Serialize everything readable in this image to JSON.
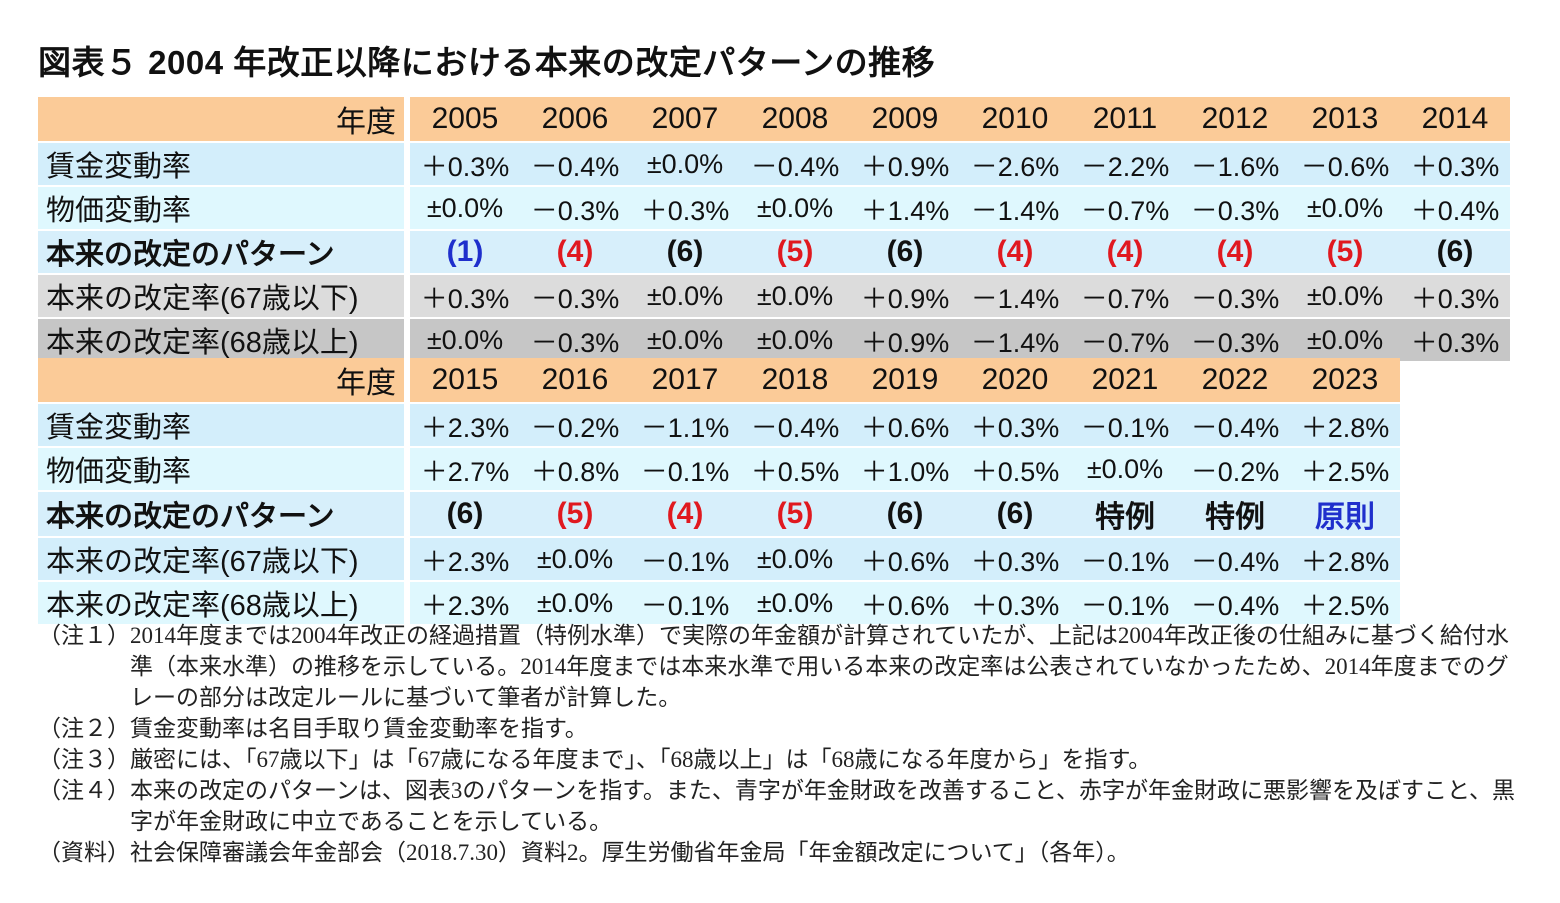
{
  "title": "図表５  2004 年改正以降における本来の改定パターンの推移",
  "colors": {
    "header": "#fbcb98",
    "red": "#e0191f",
    "blue": "#1f2fcc",
    "gray1": "#dcdcdc",
    "gray2": "#c6c6c6",
    "lightblue": "#d3eefb"
  },
  "row_labels": {
    "year": "年度",
    "wage": "賃金変動率",
    "price": "物価変動率",
    "pattern": "本来の改定のパターン",
    "rate67": "本来の改定率(67歳以下)",
    "rate68": "本来の改定率(68歳以上)"
  },
  "table1": {
    "years": [
      "2005",
      "2006",
      "2007",
      "2008",
      "2009",
      "2010",
      "2011",
      "2012",
      "2013",
      "2014"
    ],
    "wage": [
      "＋0.3%",
      "－0.4%",
      "±0.0%",
      "－0.4%",
      "＋0.9%",
      "－2.6%",
      "－2.2%",
      "－1.6%",
      "－0.6%",
      "＋0.3%"
    ],
    "price": [
      "±0.0%",
      "－0.3%",
      "＋0.3%",
      "±0.0%",
      "＋1.4%",
      "－1.4%",
      "－0.7%",
      "－0.3%",
      "±0.0%",
      "＋0.4%"
    ],
    "pattern": [
      "(1)",
      "(4)",
      "(6)",
      "(5)",
      "(6)",
      "(4)",
      "(4)",
      "(4)",
      "(5)",
      "(6)"
    ],
    "pattern_color": [
      "blue",
      "red",
      "black",
      "red",
      "black",
      "red",
      "red",
      "red",
      "red",
      "black"
    ],
    "rate67": [
      "＋0.3%",
      "－0.3%",
      "±0.0%",
      "±0.0%",
      "＋0.9%",
      "－1.4%",
      "－0.7%",
      "－0.3%",
      "±0.0%",
      "＋0.3%"
    ],
    "rate68": [
      "±0.0%",
      "－0.3%",
      "±0.0%",
      "±0.0%",
      "＋0.9%",
      "－1.4%",
      "－0.7%",
      "－0.3%",
      "±0.0%",
      "＋0.3%"
    ]
  },
  "table2": {
    "years": [
      "2015",
      "2016",
      "2017",
      "2018",
      "2019",
      "2020",
      "2021",
      "2022",
      "2023"
    ],
    "wage": [
      "＋2.3%",
      "－0.2%",
      "－1.1%",
      "－0.4%",
      "＋0.6%",
      "＋0.3%",
      "－0.1%",
      "－0.4%",
      "＋2.8%"
    ],
    "price": [
      "＋2.7%",
      "＋0.8%",
      "－0.1%",
      "＋0.5%",
      "＋1.0%",
      "＋0.5%",
      "±0.0%",
      "－0.2%",
      "＋2.5%"
    ],
    "pattern": [
      "(6)",
      "(5)",
      "(4)",
      "(5)",
      "(6)",
      "(6)",
      "特例",
      "特例",
      "原則"
    ],
    "pattern_color": [
      "black",
      "red",
      "red",
      "red",
      "black",
      "black",
      "black",
      "black",
      "blue"
    ],
    "rate67": [
      "＋2.3%",
      "±0.0%",
      "－0.1%",
      "±0.0%",
      "＋0.6%",
      "＋0.3%",
      "－0.1%",
      "－0.4%",
      "＋2.8%"
    ],
    "rate68": [
      "＋2.3%",
      "±0.0%",
      "－0.1%",
      "±0.0%",
      "＋0.6%",
      "＋0.3%",
      "－0.1%",
      "－0.4%",
      "＋2.5%"
    ]
  },
  "notes": [
    {
      "tag": "（注１）",
      "text": "2014年度までは2004年改正の経過措置（特例水準）で実際の年金額が計算されていたが、上記は2004年改正後の仕組みに基づく給付水準（本来水準）の推移を示している。2014年度までは本来水準で用いる本来の改定率は公表されていなかったため、2014年度までのグレーの部分は改定ルールに基づいて筆者が計算した。"
    },
    {
      "tag": "（注２）",
      "text": "賃金変動率は名目手取り賃金変動率を指す。"
    },
    {
      "tag": "（注３）",
      "text": "厳密には、「67歳以下」は「67歳になる年度まで」、「68歳以上」は「68歳になる年度から」を指す。"
    },
    {
      "tag": "（注４）",
      "text": "本来の改定のパターンは、図表3のパターンを指す。また、青字が年金財政を改善すること、赤字が年金財政に悪影響を及ぼすこと、黒字が年金財政に中立であることを示している。"
    },
    {
      "tag": "（資料）",
      "text": "社会保障審議会年金部会（2018.7.30）資料2。厚生労働省年金局「年金額改定について」（各年）。"
    }
  ]
}
